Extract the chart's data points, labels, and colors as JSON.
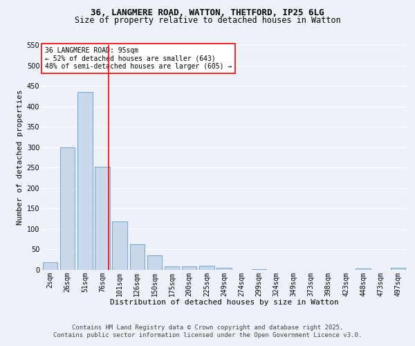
{
  "title_line1": "36, LANGMERE ROAD, WATTON, THETFORD, IP25 6LG",
  "title_line2": "Size of property relative to detached houses in Watton",
  "xlabel": "Distribution of detached houses by size in Watton",
  "ylabel": "Number of detached properties",
  "bar_labels": [
    "2sqm",
    "26sqm",
    "51sqm",
    "76sqm",
    "101sqm",
    "126sqm",
    "150sqm",
    "175sqm",
    "200sqm",
    "225sqm",
    "249sqm",
    "274sqm",
    "299sqm",
    "324sqm",
    "349sqm",
    "373sqm",
    "398sqm",
    "423sqm",
    "448sqm",
    "473sqm",
    "497sqm"
  ],
  "bar_values": [
    18,
    300,
    435,
    253,
    118,
    62,
    35,
    8,
    8,
    11,
    5,
    0,
    2,
    0,
    0,
    0,
    0,
    0,
    3,
    0,
    5
  ],
  "bar_color": "#c9d9eb",
  "bar_edge_color": "#7aaacc",
  "background_color": "#eef2f8",
  "grid_color": "#ffffff",
  "vline_x": 3.35,
  "vline_color": "red",
  "annotation_title": "36 LANGMERE ROAD: 95sqm",
  "annotation_line2": "← 52% of detached houses are smaller (643)",
  "annotation_line3": "48% of semi-detached houses are larger (605) →",
  "annotation_box_color": "white",
  "annotation_border_color": "red",
  "ylim": [
    0,
    550
  ],
  "yticks": [
    0,
    50,
    100,
    150,
    200,
    250,
    300,
    350,
    400,
    450,
    500,
    550
  ],
  "footer_line1": "Contains HM Land Registry data © Crown copyright and database right 2025.",
  "footer_line2": "Contains public sector information licensed under the Open Government Licence v3.0.",
  "title_fontsize": 9,
  "subtitle_fontsize": 8.5,
  "axis_label_fontsize": 8,
  "tick_fontsize": 7,
  "annotation_fontsize": 7,
  "footer_fontsize": 6.5
}
